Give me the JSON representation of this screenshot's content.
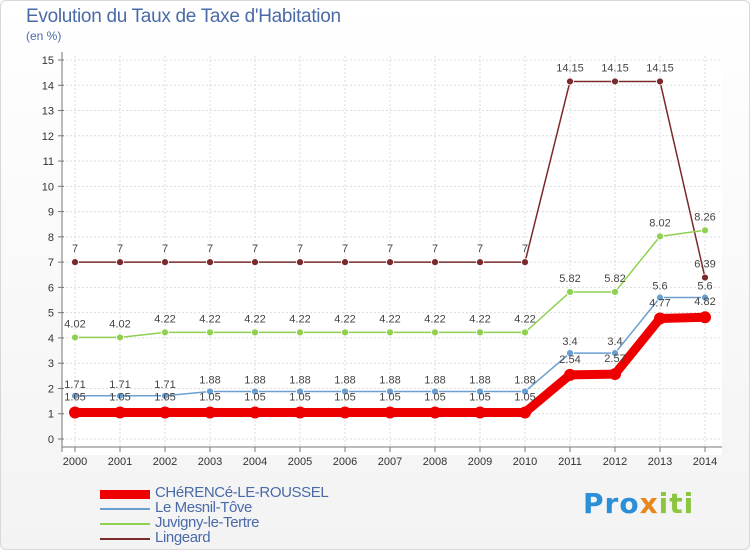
{
  "chart_data": {
    "type": "line",
    "title": "Evolution du Taux de Taxe d'Habitation",
    "subtitle": "(en %)",
    "xlabel": "",
    "ylabel": "",
    "ylim": [
      0,
      15
    ],
    "yticks": [
      0,
      1,
      2,
      3,
      4,
      5,
      6,
      7,
      8,
      9,
      10,
      11,
      12,
      13,
      14,
      15
    ],
    "categories": [
      "2000",
      "2001",
      "2002",
      "2003",
      "2004",
      "2005",
      "2006",
      "2007",
      "2008",
      "2009",
      "2010",
      "2011",
      "2012",
      "2013",
      "2014"
    ],
    "grid": true,
    "series": [
      {
        "name": "CHéRENCé-LE-ROUSSEL",
        "color": "#ee0000",
        "values": [
          1.05,
          1.05,
          1.05,
          1.05,
          1.05,
          1.05,
          1.05,
          1.05,
          1.05,
          1.05,
          1.05,
          2.54,
          2.57,
          4.77,
          4.82
        ],
        "labels": [
          "1.05",
          "1.05",
          "1.05",
          "1.05",
          "1.05",
          "1.05",
          "1.05",
          "1.05",
          "1.05",
          "1.05",
          "1.05",
          "2.54",
          "2.57",
          "4.77",
          "4.82"
        ]
      },
      {
        "name": "Le Mesnil-Tôve",
        "color": "#6a9fd0",
        "values": [
          1.71,
          1.71,
          1.71,
          1.88,
          1.88,
          1.88,
          1.88,
          1.88,
          1.88,
          1.88,
          1.88,
          3.4,
          3.4,
          5.6,
          5.6
        ],
        "labels": [
          "1.71",
          "1.71",
          "1.71",
          "1.88",
          "1.88",
          "1.88",
          "1.88",
          "1.88",
          "1.88",
          "1.88",
          "1.88",
          "3.4",
          "3.4",
          "5.6",
          "5.6"
        ]
      },
      {
        "name": "Juvigny-le-Tertre",
        "color": "#8fd04f",
        "values": [
          4.02,
          4.02,
          4.22,
          4.22,
          4.22,
          4.22,
          4.22,
          4.22,
          4.22,
          4.22,
          4.22,
          5.82,
          5.82,
          8.02,
          8.26
        ],
        "labels": [
          "4.02",
          "4.02",
          "4.22",
          "4.22",
          "4.22",
          "4.22",
          "4.22",
          "4.22",
          "4.22",
          "4.22",
          "4.22",
          "5.82",
          "5.82",
          "8.02",
          "8.26"
        ]
      },
      {
        "name": "Lingeard",
        "color": "#7a2a2a",
        "values": [
          7,
          7,
          7,
          7,
          7,
          7,
          7,
          7,
          7,
          7,
          7,
          14.15,
          14.15,
          14.15,
          6.39
        ],
        "labels": [
          "7",
          "7",
          "7",
          "7",
          "7",
          "7",
          "7",
          "7",
          "7",
          "7",
          "7",
          "14.15",
          "14.15",
          "14.15",
          "6.39"
        ]
      }
    ]
  },
  "logo": {
    "text_part1": "Pro",
    "text_part2": "x",
    "text_part3": "iti"
  }
}
